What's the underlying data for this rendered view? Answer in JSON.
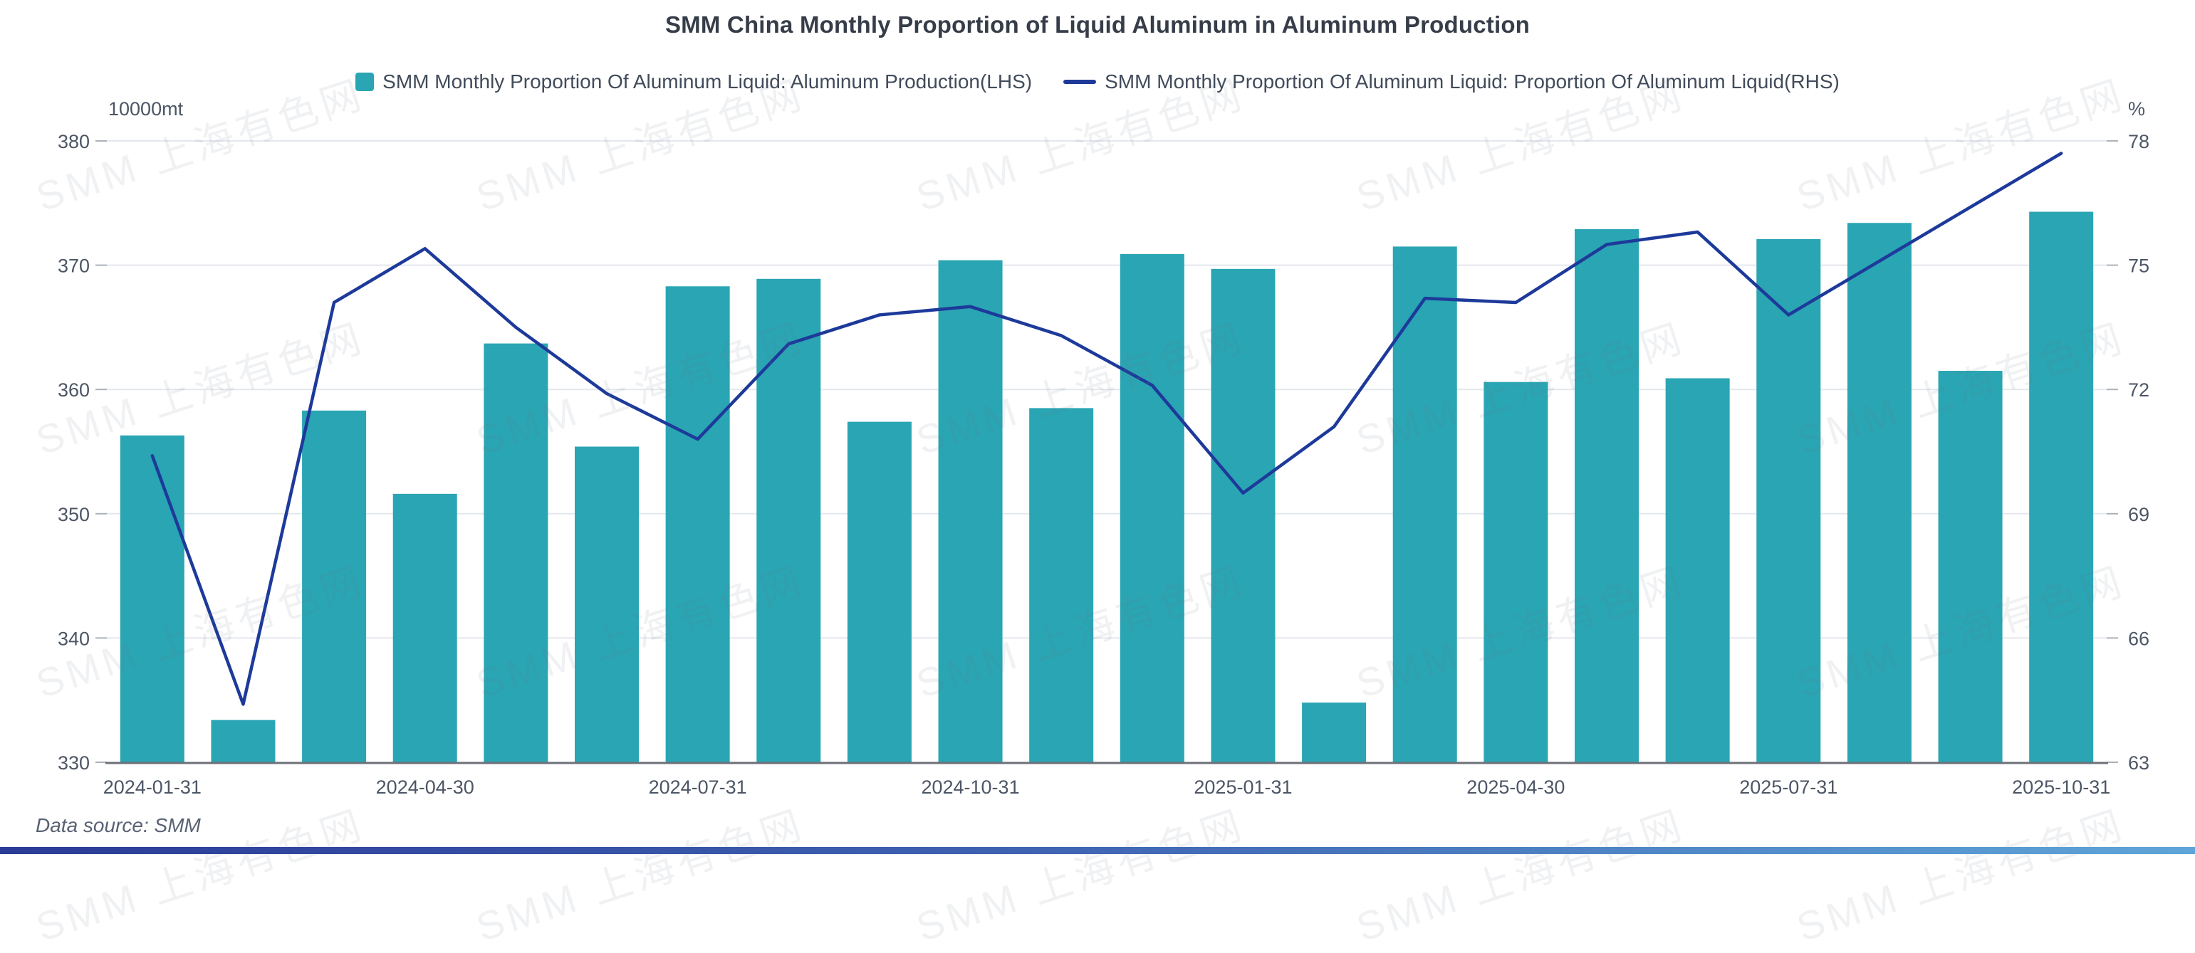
{
  "title": "SMM China Monthly Proportion of Liquid Aluminum in Aluminum Production",
  "legend": {
    "bar": {
      "label": "SMM Monthly Proportion Of Aluminum Liquid: Aluminum Production(LHS)"
    },
    "line": {
      "label": "SMM Monthly Proportion Of Aluminum Liquid: Proportion Of Aluminum Liquid(RHS)"
    }
  },
  "footer": {
    "data_source": "Data source: SMM"
  },
  "watermark": {
    "text": "SMM 上海有色网"
  },
  "colors": {
    "bar": "#2AA5B3",
    "line": "#1D3A9A",
    "grid": "#E4E7EE",
    "axis_line": "#6E7079",
    "tick": "#ABB0BA",
    "axis_text": "#4D5665"
  },
  "chart_data": {
    "type": "bar+line",
    "title": "SMM China Monthly Proportion of Liquid Aluminum in Aluminum Production",
    "grid": true,
    "legend_position": "top",
    "categories": [
      "2024-01-31",
      "2024-02-29",
      "2024-03-31",
      "2024-04-30",
      "2024-05-31",
      "2024-06-30",
      "2024-07-31",
      "2024-08-31",
      "2024-09-30",
      "2024-10-31",
      "2024-11-30",
      "2024-12-31",
      "2025-01-31",
      "2025-02-28",
      "2025-03-31",
      "2025-04-30",
      "2025-05-31",
      "2025-06-30",
      "2025-07-31",
      "2025-08-31",
      "2025-09-30",
      "2025-10-31"
    ],
    "x_label_interval": 3,
    "shown_x_labels": [
      "2024-01-31",
      "2024-04-30",
      "2024-07-31",
      "2024-10-31",
      "2025-01-31",
      "2025-04-30",
      "2025-07-31",
      "2025-10-31"
    ],
    "left_axis": {
      "label": "10000mt",
      "range": [
        330,
        380
      ],
      "ticks": [
        330,
        340,
        350,
        360,
        370,
        380
      ]
    },
    "right_axis": {
      "label": "%",
      "range": [
        63,
        78
      ],
      "ticks": [
        63,
        66,
        69,
        72,
        75,
        78
      ]
    },
    "series": [
      {
        "name": "SMM Monthly Proportion Of Aluminum Liquid: Aluminum Production(LHS)",
        "type": "bar",
        "axis": "left",
        "values": [
          356.3,
          333.4,
          358.3,
          351.6,
          363.7,
          355.4,
          368.3,
          368.9,
          357.4,
          370.4,
          358.5,
          370.9,
          369.7,
          334.8,
          371.5,
          360.6,
          372.9,
          360.9,
          372.1,
          373.4,
          361.5,
          374.3
        ]
      },
      {
        "name": "SMM Monthly Proportion Of Aluminum Liquid: Proportion Of Aluminum Liquid(RHS)",
        "type": "line",
        "axis": "right",
        "values": [
          70.4,
          64.4,
          74.1,
          75.4,
          73.5,
          71.9,
          70.8,
          73.1,
          73.8,
          74.0,
          73.3,
          72.1,
          69.5,
          71.1,
          74.2,
          74.1,
          75.5,
          75.8,
          73.8,
          75.1,
          76.4,
          77.7
        ]
      }
    ]
  }
}
